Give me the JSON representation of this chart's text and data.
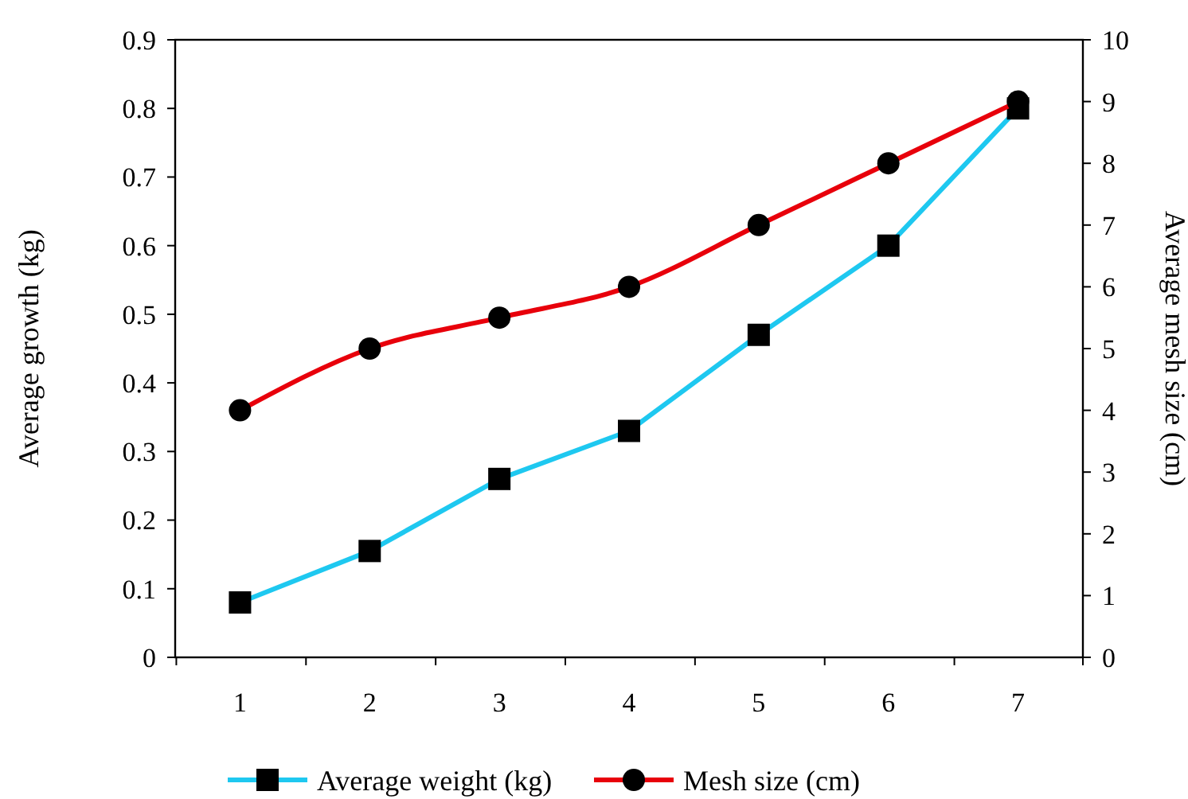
{
  "chart_data": {
    "type": "line",
    "ylabel": "Average growth (kg)",
    "y2label": "Average mesh size (cm)",
    "categories": [
      "1",
      "2",
      "3",
      "4",
      "5",
      "6",
      "7"
    ],
    "ylim": [
      0,
      0.9
    ],
    "yticks": [
      {
        "value": 0,
        "label": "0"
      },
      {
        "value": 0.1,
        "label": "0.1"
      },
      {
        "value": 0.2,
        "label": "0.2"
      },
      {
        "value": 0.3,
        "label": "0.3"
      },
      {
        "value": 0.4,
        "label": "0.4"
      },
      {
        "value": 0.5,
        "label": "0.5"
      },
      {
        "value": 0.6,
        "label": "0.6"
      },
      {
        "value": 0.7,
        "label": "0.7"
      },
      {
        "value": 0.8,
        "label": "0.8"
      },
      {
        "value": 0.9,
        "label": "0.9"
      }
    ],
    "y2lim": [
      0,
      10
    ],
    "y2ticks": [
      0,
      1,
      2,
      3,
      4,
      5,
      6,
      7,
      8,
      9,
      10
    ],
    "series": [
      {
        "name": "Average weight (kg)",
        "color": "#1ec8f0",
        "marker": "square",
        "values": [
          0.08,
          0.155,
          0.26,
          0.33,
          0.47,
          0.6,
          0.8
        ]
      },
      {
        "name": "Mesh size (cm)",
        "color": "#e8000b",
        "marker": "circle",
        "axis": "y2",
        "values": [
          4,
          5,
          5.5,
          6,
          7,
          8,
          9
        ]
      }
    ],
    "grid": false,
    "legend": "bottom"
  }
}
